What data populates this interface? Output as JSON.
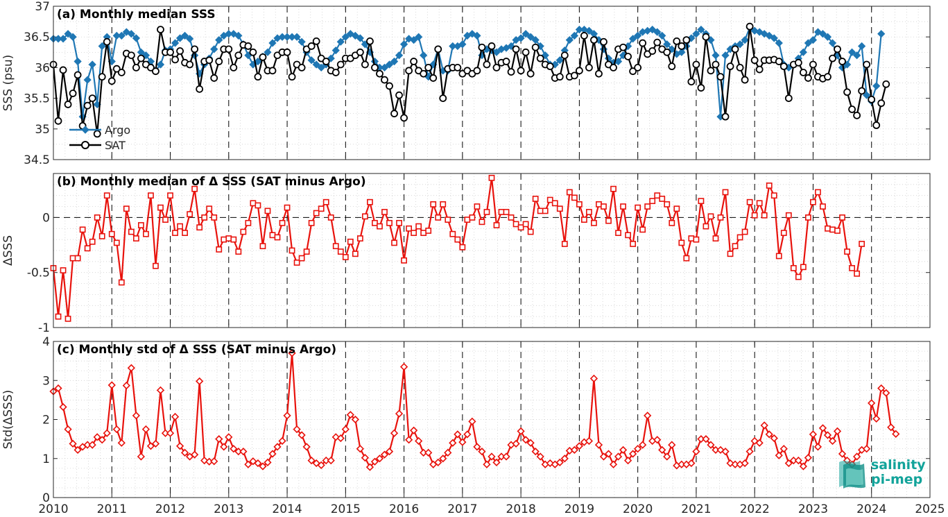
{
  "logo": {
    "line1": "salinity",
    "line2": "pi-mep",
    "color": "#12a39a"
  },
  "chart_data": [
    {
      "type": "line",
      "title": "(a) Monthly median SSS",
      "ylabel": "SSS (psu)",
      "xlabel": "",
      "xlim": [
        2010,
        2025
      ],
      "ylim": [
        34.5,
        37
      ],
      "x_ticks": [
        2010,
        2011,
        2012,
        2013,
        2014,
        2015,
        2016,
        2017,
        2018,
        2019,
        2020,
        2021,
        2022,
        2023,
        2024,
        2025
      ],
      "y_ticks": [
        34.5,
        35,
        35.5,
        36,
        36.5,
        37
      ],
      "y_tick_labels": [
        "34.5",
        "35",
        "35.5",
        "36",
        "36.5",
        "37"
      ],
      "grid": "dotted",
      "legend_position": "bottom-left",
      "series": [
        {
          "name": "Argo",
          "color": "#1f77b4",
          "marker": "diamond",
          "x0": 2010.0,
          "dx": 0.08333,
          "values": [
            36.47,
            36.47,
            36.47,
            36.55,
            36.5,
            36.1,
            35.2,
            35.8,
            36.05,
            35.4,
            36.35,
            36.5,
            36.1,
            36.52,
            36.52,
            36.58,
            36.55,
            36.48,
            36.25,
            36.2,
            36.1,
            35.95,
            36.05,
            36.28,
            36.3,
            36.4,
            36.48,
            36.52,
            36.47,
            36.2,
            35.9,
            36.05,
            36.15,
            36.3,
            36.45,
            36.52,
            36.55,
            36.55,
            36.52,
            36.38,
            36.2,
            36.05,
            36.1,
            36.18,
            36.25,
            36.4,
            36.48,
            36.5,
            36.5,
            36.5,
            36.5,
            36.42,
            36.25,
            36.12,
            36.05,
            36.0,
            36.05,
            36.15,
            36.28,
            36.42,
            36.5,
            36.55,
            36.52,
            36.48,
            36.38,
            36.25,
            36.1,
            36.0,
            36.0,
            36.05,
            36.1,
            36.2,
            36.38,
            36.47,
            36.45,
            36.5,
            36.2,
            35.85,
            36.05,
            36.3,
            35.95,
            35.95,
            36.35,
            36.35,
            36.38,
            36.52,
            36.55,
            36.52,
            36.2,
            36.3,
            36.28,
            36.25,
            36.3,
            36.32,
            36.35,
            36.45,
            36.48,
            36.55,
            36.5,
            36.45,
            36.35,
            36.2,
            36.05,
            36.05,
            36.12,
            36.28,
            36.45,
            36.52,
            36.62,
            36.62,
            36.6,
            36.55,
            36.45,
            36.3,
            36.15,
            36.08,
            36.1,
            36.2,
            36.35,
            36.47,
            36.52,
            36.58,
            36.6,
            36.62,
            36.58,
            36.52,
            36.38,
            36.3,
            36.22,
            36.25,
            36.35,
            36.48,
            36.55,
            36.62,
            36.55,
            36.45,
            36.2,
            35.2,
            36.2,
            36.3,
            36.35,
            36.38,
            36.45,
            36.65,
            36.6,
            36.58,
            36.55,
            36.52,
            36.48,
            36.4,
            36.05,
            36.0,
            36.05,
            36.15,
            36.25,
            36.4,
            36.45,
            36.58,
            36.55,
            36.5,
            36.4,
            36.2,
            36.0,
            36.05,
            36.25,
            36.2,
            36.35,
            35.55,
            35.45,
            35.7,
            36.55
          ]
        },
        {
          "name": "SAT",
          "color": "#000000",
          "marker": "circle",
          "x0": 2010.0,
          "dx": 0.08333,
          "values": [
            36.05,
            35.13,
            35.96,
            35.4,
            35.58,
            35.88,
            35.05,
            35.38,
            35.5,
            34.92,
            35.85,
            36.42,
            35.78,
            35.98,
            35.92,
            36.23,
            36.2,
            36.0,
            36.15,
            36.05,
            36.0,
            35.94,
            36.62,
            36.25,
            36.25,
            36.13,
            36.27,
            36.08,
            36.05,
            36.3,
            35.65,
            36.1,
            36.12,
            35.83,
            36.1,
            36.3,
            36.3,
            36.0,
            36.2,
            36.37,
            36.35,
            36.25,
            35.85,
            36.17,
            35.95,
            35.95,
            36.2,
            36.25,
            36.25,
            35.85,
            36.05,
            36.0,
            36.3,
            36.35,
            36.43,
            36.15,
            36.1,
            35.95,
            35.92,
            36.05,
            36.15,
            36.15,
            36.2,
            36.25,
            36.05,
            36.43,
            36.0,
            35.9,
            35.8,
            35.7,
            35.25,
            35.55,
            35.18,
            35.95,
            36.1,
            35.95,
            35.9,
            36.0,
            35.83,
            36.3,
            35.5,
            35.98,
            36.0,
            36.0,
            35.9,
            35.95,
            35.9,
            35.95,
            36.33,
            36.05,
            36.35,
            36.0,
            36.08,
            36.1,
            35.93,
            36.3,
            35.95,
            36.25,
            35.9,
            36.33,
            36.15,
            36.05,
            36.02,
            35.83,
            35.85,
            36.2,
            35.85,
            35.87,
            35.95,
            36.52,
            36.0,
            36.45,
            35.9,
            36.42,
            36.05,
            36.0,
            36.3,
            36.33,
            36.18,
            35.94,
            36.0,
            36.4,
            36.22,
            36.27,
            36.41,
            36.3,
            36.25,
            36.02,
            36.43,
            36.35,
            36.45,
            35.77,
            36.05,
            35.67,
            36.5,
            35.95,
            36.05,
            35.85,
            35.2,
            36.02,
            36.3,
            36.0,
            35.8,
            36.67,
            36.12,
            35.97,
            36.12,
            36.12,
            36.13,
            36.1,
            36.02,
            35.5,
            36.05,
            36.08,
            35.92,
            35.83,
            36.05,
            35.85,
            35.82,
            35.85,
            36.15,
            36.3,
            36.1,
            35.6,
            35.32,
            35.22,
            35.62,
            36.05,
            35.48,
            35.06,
            35.42,
            35.73
          ]
        }
      ]
    },
    {
      "type": "line",
      "title": "(b) Monthly median of Δ SSS (SAT minus Argo)",
      "ylabel": "ΔSSS",
      "xlabel": "",
      "xlim": [
        2010,
        2025
      ],
      "ylim": [
        -1,
        0.4
      ],
      "y_ticks": [
        -1,
        -0.5,
        0
      ],
      "y_tick_labels": [
        "-1",
        "-0.5",
        "0"
      ],
      "grid": "dotted",
      "reference_line": 0,
      "series": [
        {
          "name": "",
          "color": "#e8120c",
          "marker": "square",
          "x0": 2010.0,
          "dx": 0.08333,
          "values": [
            -0.46,
            -0.9,
            -0.48,
            -0.92,
            -0.37,
            -0.37,
            -0.11,
            -0.28,
            -0.22,
            0.0,
            -0.17,
            0.2,
            -0.15,
            -0.23,
            -0.59,
            0.08,
            -0.13,
            -0.19,
            -0.07,
            -0.15,
            0.2,
            -0.44,
            0.09,
            -0.02,
            0.2,
            -0.14,
            -0.08,
            -0.14,
            0.03,
            0.26,
            -0.09,
            0.0,
            0.08,
            -0.0,
            -0.29,
            -0.2,
            -0.19,
            -0.2,
            -0.31,
            -0.13,
            -0.05,
            0.13,
            0.11,
            -0.26,
            0.06,
            -0.16,
            -0.18,
            -0.05,
            0.09,
            -0.3,
            -0.41,
            -0.37,
            -0.31,
            -0.05,
            0.04,
            0.08,
            0.14,
            0.0,
            -0.26,
            -0.31,
            -0.36,
            -0.22,
            -0.33,
            -0.19,
            0.01,
            0.14,
            -0.05,
            -0.08,
            0.05,
            -0.05,
            -0.23,
            -0.05,
            -0.39,
            -0.1,
            -0.14,
            -0.08,
            -0.14,
            -0.12,
            0.12,
            0.0,
            0.12,
            -0.02,
            -0.15,
            -0.2,
            -0.27,
            -0.02,
            0.0,
            0.1,
            -0.04,
            0.05,
            0.36,
            -0.07,
            0.05,
            0.05,
            -0.0,
            -0.06,
            -0.09,
            -0.06,
            -0.13,
            0.17,
            0.06,
            0.06,
            0.16,
            0.13,
            0.08,
            -0.24,
            0.23,
            0.18,
            0.12,
            -0.02,
            0.05,
            -0.05,
            0.12,
            0.1,
            -0.03,
            0.26,
            -0.14,
            0.1,
            -0.16,
            -0.24,
            0.09,
            -0.11,
            0.1,
            0.15,
            0.2,
            0.17,
            0.12,
            -0.05,
            0.08,
            -0.23,
            -0.37,
            -0.19,
            -0.2,
            0.15,
            -0.08,
            0.01,
            -0.19,
            0.0,
            0.23,
            -0.33,
            -0.26,
            -0.18,
            -0.13,
            0.14,
            0.02,
            0.13,
            0.02,
            0.29,
            0.2,
            -0.35,
            -0.14,
            0.02,
            -0.46,
            -0.54,
            -0.45,
            0.0,
            0.14,
            0.23,
            0.1,
            -0.1,
            -0.11,
            -0.12,
            -0.0,
            -0.31,
            -0.46,
            -0.51,
            -0.24
          ]
        }
      ]
    },
    {
      "type": "line",
      "title": "(c) Monthly std of Δ SSS (SAT minus Argo)",
      "ylabel": "Std(ΔSSS)",
      "xlabel": "",
      "xlim": [
        2010,
        2025
      ],
      "ylim": [
        0,
        4
      ],
      "y_ticks": [
        0,
        1,
        2,
        3,
        4
      ],
      "y_tick_labels": [
        "0",
        "1",
        "2",
        "3",
        "4"
      ],
      "x_tick_labels": [
        "2010",
        "2011",
        "2012",
        "2013",
        "2014",
        "2015",
        "2016",
        "2017",
        "2018",
        "2019",
        "2020",
        "2021",
        "2022",
        "2023",
        "2024",
        "2025"
      ],
      "grid": "dotted",
      "series": [
        {
          "name": "",
          "color": "#e8120c",
          "marker": "diamond",
          "x0": 2010.0,
          "dx": 0.08333,
          "values": [
            2.72,
            2.8,
            2.32,
            1.75,
            1.38,
            1.22,
            1.3,
            1.35,
            1.35,
            1.55,
            1.48,
            1.65,
            2.88,
            1.75,
            1.4,
            2.87,
            3.32,
            2.1,
            1.05,
            1.75,
            1.32,
            1.38,
            2.75,
            1.65,
            1.65,
            2.07,
            1.32,
            1.15,
            1.05,
            1.1,
            2.98,
            0.95,
            0.92,
            0.93,
            1.5,
            1.3,
            1.55,
            1.25,
            1.18,
            1.18,
            0.85,
            0.93,
            0.88,
            0.8,
            0.9,
            1.12,
            1.3,
            1.45,
            2.1,
            3.7,
            1.75,
            1.6,
            1.3,
            0.95,
            0.88,
            0.83,
            0.95,
            0.95,
            1.55,
            1.52,
            1.75,
            2.12,
            2.0,
            1.25,
            1.02,
            0.78,
            0.92,
            1.0,
            1.1,
            1.18,
            1.65,
            2.15,
            3.35,
            1.48,
            1.72,
            1.45,
            1.15,
            1.15,
            0.85,
            0.9,
            1.0,
            1.15,
            1.4,
            1.62,
            1.42,
            1.62,
            1.95,
            1.3,
            1.18,
            0.85,
            1.05,
            0.9,
            1.05,
            1.05,
            1.35,
            1.38,
            1.7,
            1.48,
            1.4,
            1.18,
            1.05,
            0.85,
            0.88,
            0.85,
            0.9,
            1.0,
            1.2,
            1.22,
            1.32,
            1.42,
            1.45,
            3.05,
            1.35,
            1.05,
            1.12,
            0.85,
            1.05,
            1.22,
            0.95,
            1.12,
            1.25,
            1.35,
            2.1,
            1.45,
            1.48,
            1.22,
            1.05,
            1.35,
            0.82,
            0.85,
            0.85,
            0.88,
            1.18,
            1.5,
            1.5,
            1.35,
            1.22,
            1.22,
            1.18,
            0.88,
            0.85,
            0.85,
            0.88,
            1.18,
            1.45,
            1.4,
            1.85,
            1.62,
            1.52,
            1.08,
            1.25,
            0.88,
            0.95,
            0.95,
            0.8,
            1.02,
            1.62,
            1.3,
            1.78,
            1.6,
            1.45,
            1.7,
            1.12,
            0.95,
            0.85,
            1.05,
            1.22,
            1.25,
            2.42,
            2.02,
            2.8,
            2.68,
            1.8,
            1.63
          ]
        }
      ]
    }
  ]
}
